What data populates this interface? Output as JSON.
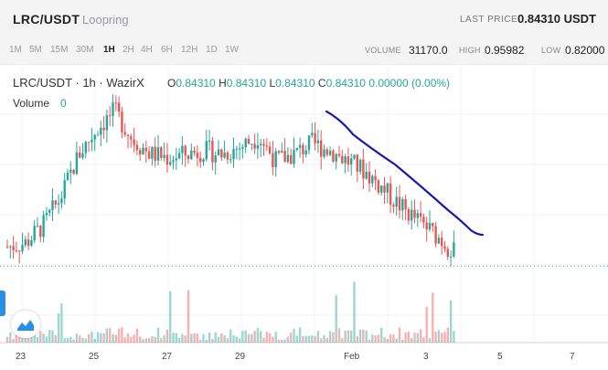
{
  "header": {
    "pair": "LRC/USDT",
    "name": "Loopring",
    "last_price_label": "LAST PRICE",
    "last_price_value": "0.84310 USDT"
  },
  "timeframes": {
    "items": [
      "1M",
      "5M",
      "15M",
      "30M",
      "1H",
      "2H",
      "4H",
      "6H",
      "12H",
      "1D",
      "1W"
    ],
    "active": "1H"
  },
  "stats": {
    "volume_label": "VOLUME",
    "volume_value": "31170.0",
    "high_label": "HIGH",
    "high_value": "0.95982",
    "low_label": "LOW",
    "low_value": "0.82000"
  },
  "legend": {
    "title": "LRC/USDT · 1h · WazirX",
    "o_label": "O",
    "o_value": "0.84310",
    "h_label": "H",
    "h_value": "0.84310",
    "l_label": "L",
    "l_value": "0.84310",
    "c_label": "C",
    "c_value": "0.84310",
    "change": "0.00000 (0.00%)",
    "volume_label": "Volume",
    "volume_value": "0"
  },
  "colors": {
    "up": "#26a69a",
    "down": "#ef5350",
    "trendline": "#1a1aa6",
    "lastprice": "#26a69a"
  },
  "icons": {
    "logo": "tradingview-logo-icon"
  },
  "chart_data": {
    "type": "candlestick",
    "x_ticks": [
      "23",
      "25",
      "27",
      "29",
      "Feb",
      "3",
      "5",
      "7"
    ],
    "price_trend": [
      0.87,
      0.875,
      0.9,
      0.94,
      1.0,
      1.035,
      1.06,
      1.02,
      1.0,
      0.995,
      1.0,
      1.005,
      1.0,
      1.01,
      1.025,
      0.99,
      1.0,
      1.015,
      1.005,
      0.99,
      0.975,
      0.95,
      0.925,
      0.905,
      0.885,
      0.86
    ],
    "last_price": 0.8431,
    "trendline": "hand-drawn downward line from Feb 1 to Feb 4"
  }
}
